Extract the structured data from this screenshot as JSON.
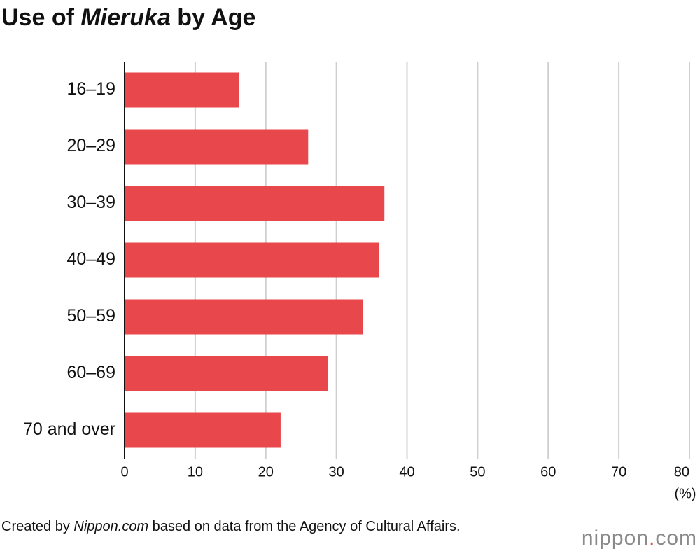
{
  "chart_data": {
    "type": "bar",
    "orientation": "horizontal",
    "title": [
      "Use of ",
      "Mieruka",
      " by Age"
    ],
    "categories": [
      "16–19",
      "20–29",
      "30–39",
      "40–49",
      "50–59",
      "60–69",
      "70 and over"
    ],
    "values": [
      16.2,
      26.0,
      36.8,
      36.0,
      33.8,
      28.8,
      22.1
    ],
    "color": "#e8474b",
    "xlim": [
      0,
      80
    ],
    "xticks": [
      0,
      10,
      20,
      30,
      40,
      50,
      60,
      70,
      80
    ],
    "x_label": "(%)",
    "grid": true,
    "source": [
      "Created by ",
      "Nippon.com",
      " based on data from the Agency of Cultural Affairs."
    ],
    "logo": [
      "nippon",
      ".",
      "com"
    ]
  }
}
